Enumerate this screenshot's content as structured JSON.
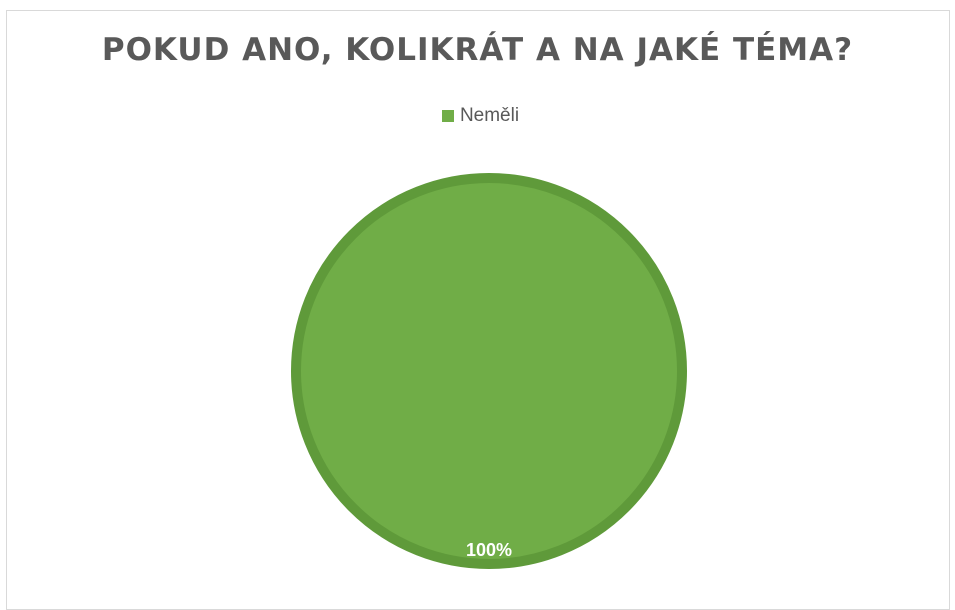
{
  "chart_data": {
    "type": "pie",
    "title": "POKUD ANO, KOLIKRÁT A NA JAKÉ TÉMA?",
    "categories": [
      "Neměli"
    ],
    "values": [
      100
    ],
    "data_labels": [
      "100%"
    ],
    "colors": [
      "#70ad47"
    ],
    "edge_color": "#5f9a3a",
    "legend": "top-center"
  }
}
